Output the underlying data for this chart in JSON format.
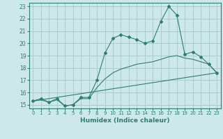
{
  "title": "",
  "xlabel": "Humidex (Indice chaleur)",
  "ylabel": "",
  "bg_color": "#cce8e8",
  "grid_color": "#aacccc",
  "line_color": "#2e7d6e",
  "xlim": [
    -0.5,
    23.5
  ],
  "ylim": [
    14.7,
    23.3
  ],
  "xticks": [
    0,
    1,
    2,
    3,
    4,
    5,
    6,
    7,
    8,
    9,
    10,
    11,
    12,
    13,
    14,
    15,
    16,
    17,
    18,
    19,
    20,
    21,
    22,
    23
  ],
  "yticks": [
    15,
    16,
    17,
    18,
    19,
    20,
    21,
    22,
    23
  ],
  "curve1_x": [
    0,
    1,
    2,
    3,
    4,
    5,
    6,
    7,
    8,
    9,
    10,
    11,
    12,
    13,
    14,
    15,
    16,
    17,
    18,
    19,
    20,
    21,
    22,
    23
  ],
  "curve1_y": [
    15.3,
    15.5,
    15.2,
    15.5,
    14.9,
    15.0,
    15.6,
    15.6,
    17.0,
    19.2,
    20.4,
    20.7,
    20.5,
    20.3,
    20.0,
    20.2,
    21.8,
    23.0,
    22.3,
    19.1,
    19.3,
    18.9,
    18.3,
    17.6
  ],
  "curve2_x": [
    0,
    1,
    2,
    3,
    4,
    5,
    6,
    7,
    8,
    9,
    10,
    11,
    12,
    13,
    14,
    15,
    16,
    17,
    18,
    19,
    20,
    21,
    22,
    23
  ],
  "curve2_y": [
    15.3,
    15.4,
    15.2,
    15.4,
    14.9,
    15.0,
    15.5,
    15.5,
    16.4,
    17.1,
    17.6,
    17.9,
    18.1,
    18.3,
    18.4,
    18.5,
    18.7,
    18.9,
    19.0,
    18.8,
    18.7,
    18.5,
    18.3,
    17.6
  ],
  "curve3_x": [
    0,
    23
  ],
  "curve3_y": [
    15.3,
    17.6
  ]
}
